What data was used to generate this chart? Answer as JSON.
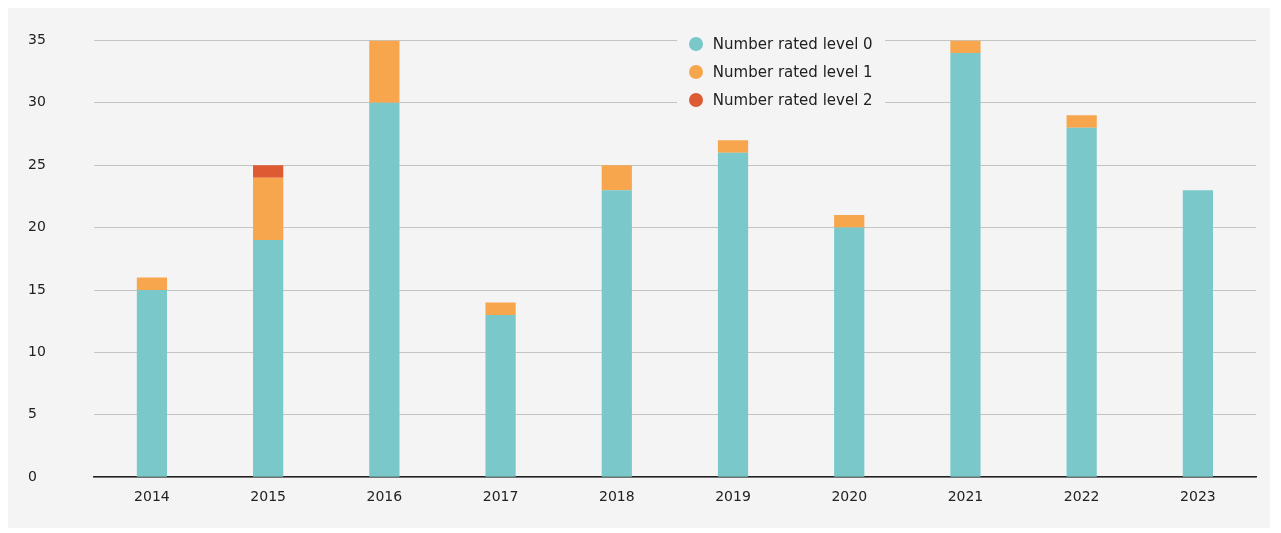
{
  "chart_data": {
    "type": "bar",
    "stacked": true,
    "categories": [
      "2014",
      "2015",
      "2016",
      "2017",
      "2018",
      "2019",
      "2020",
      "2021",
      "2022",
      "2023"
    ],
    "series": [
      {
        "name": "Number rated level 0",
        "color": "#7ac8c9",
        "values": [
          15,
          19,
          30,
          13,
          23,
          26,
          20,
          34,
          28,
          23
        ]
      },
      {
        "name": "Number rated level 1",
        "color": "#f7a64e",
        "values": [
          1,
          5,
          5,
          1,
          2,
          1,
          1,
          1,
          1,
          0
        ]
      },
      {
        "name": "Number rated level 2",
        "color": "#de5a33",
        "values": [
          0,
          1,
          0,
          0,
          0,
          0,
          0,
          0,
          0,
          0
        ]
      }
    ],
    "ylim": [
      0,
      35
    ],
    "yticks": [
      0,
      5,
      10,
      15,
      20,
      25,
      30,
      35
    ],
    "grid": "y",
    "legend": "top",
    "marker": "circle"
  }
}
